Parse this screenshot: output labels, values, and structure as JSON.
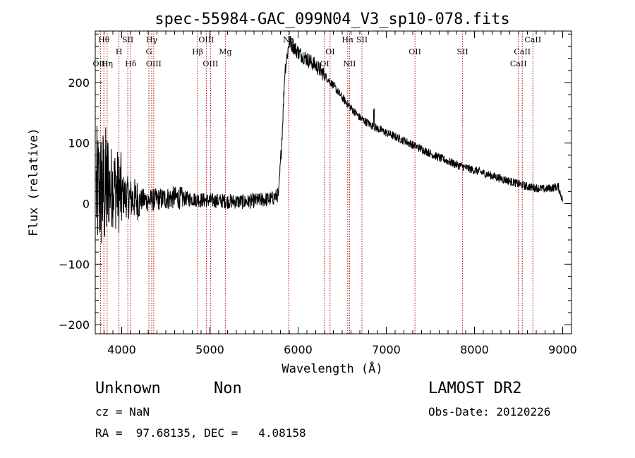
{
  "chart_data": {
    "type": "line",
    "title": "spec-55984-GAC_099N04_V3_sp10-078.fits",
    "xlabel": "Wavelength (Å)",
    "ylabel": "Flux (relative)",
    "xlim": [
      3700,
      9100
    ],
    "ylim": [
      -215,
      285
    ],
    "xticks": [
      4000,
      5000,
      6000,
      7000,
      8000,
      9000
    ],
    "yticks": [
      -200,
      -100,
      0,
      100,
      200
    ],
    "grid": false,
    "line_color": "#000000",
    "marker_line_color": "#b00000",
    "spectrum_anchors": [
      {
        "x": 3710,
        "y": 20
      },
      {
        "x": 3800,
        "y": 20
      },
      {
        "x": 3900,
        "y": 30
      },
      {
        "x": 4000,
        "y": 15
      },
      {
        "x": 4100,
        "y": 8
      },
      {
        "x": 4300,
        "y": 5
      },
      {
        "x": 4600,
        "y": 10
      },
      {
        "x": 5000,
        "y": 5
      },
      {
        "x": 5400,
        "y": 3
      },
      {
        "x": 5700,
        "y": 8
      },
      {
        "x": 5780,
        "y": 15
      },
      {
        "x": 5820,
        "y": 120
      },
      {
        "x": 5850,
        "y": 220
      },
      {
        "x": 5900,
        "y": 268
      },
      {
        "x": 6000,
        "y": 250
      },
      {
        "x": 6200,
        "y": 228
      },
      {
        "x": 6300,
        "y": 212
      },
      {
        "x": 6400,
        "y": 195
      },
      {
        "x": 6500,
        "y": 175
      },
      {
        "x": 6600,
        "y": 158
      },
      {
        "x": 6700,
        "y": 142
      },
      {
        "x": 6800,
        "y": 132
      },
      {
        "x": 6900,
        "y": 124
      },
      {
        "x": 7000,
        "y": 117
      },
      {
        "x": 7200,
        "y": 104
      },
      {
        "x": 7400,
        "y": 90
      },
      {
        "x": 7600,
        "y": 76
      },
      {
        "x": 7800,
        "y": 64
      },
      {
        "x": 8000,
        "y": 55
      },
      {
        "x": 8200,
        "y": 46
      },
      {
        "x": 8400,
        "y": 37
      },
      {
        "x": 8600,
        "y": 28
      },
      {
        "x": 8800,
        "y": 24
      },
      {
        "x": 8950,
        "y": 28
      },
      {
        "x": 9000,
        "y": 5
      }
    ],
    "spectral_lines": [
      {
        "label": "Hθ",
        "x": 3798,
        "row": 0
      },
      {
        "label": "OIII",
        "x": 3760,
        "row": 2
      },
      {
        "label": "Hη",
        "x": 3835,
        "row": 2
      },
      {
        "label": "SII",
        "x": 4069,
        "row": 0
      },
      {
        "label": "H",
        "x": 3969,
        "row": 1
      },
      {
        "label": "Hδ",
        "x": 4102,
        "row": 2
      },
      {
        "label": "Hγ",
        "x": 4340,
        "row": 0
      },
      {
        "label": "G",
        "x": 4308,
        "row": 1
      },
      {
        "label": "OIII",
        "x": 4363,
        "row": 2
      },
      {
        "label": "OIII",
        "x": 4959,
        "row": 0
      },
      {
        "label": "Hβ",
        "x": 4861,
        "row": 1
      },
      {
        "label": "OIII",
        "x": 5007,
        "row": 2
      },
      {
        "label": "Mg",
        "x": 5175,
        "row": 1
      },
      {
        "label": "Na",
        "x": 5893,
        "row": 0
      },
      {
        "label": "OI",
        "x": 6363,
        "row": 1
      },
      {
        "label": "OI",
        "x": 6300,
        "row": 2
      },
      {
        "label": "Hα",
        "x": 6563,
        "row": 0
      },
      {
        "label": "SII",
        "x": 6724,
        "row": 0
      },
      {
        "label": "NII",
        "x": 6583,
        "row": 2
      },
      {
        "label": "OII",
        "x": 7325,
        "row": 1
      },
      {
        "label": "SII",
        "x": 7865,
        "row": 1
      },
      {
        "label": "CaII",
        "x": 8662,
        "row": 0
      },
      {
        "label": "CaII",
        "x": 8542,
        "row": 1
      },
      {
        "label": "CaII",
        "x": 8498,
        "row": 2
      }
    ]
  },
  "info": {
    "class_label": "Unknown",
    "subclass_label": "Non",
    "survey_label": "LAMOST DR2",
    "cz_text": "cz = NaN",
    "obs_date_text": "Obs-Date: 20120226",
    "coords_text": "RA =  97.68135, DEC =   4.08158"
  }
}
